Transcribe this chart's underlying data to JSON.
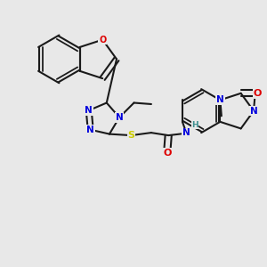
{
  "bg": "#e8e8e8",
  "bond_color": "#1a1a1a",
  "N_color": "#0000dd",
  "O_color": "#dd0000",
  "S_color": "#cccc00",
  "H_color": "#3d8f8f",
  "lw": 1.5,
  "figsize": [
    3.0,
    3.0
  ],
  "dpi": 100,
  "xlim": [
    0,
    10
  ],
  "ylim": [
    0,
    10
  ]
}
